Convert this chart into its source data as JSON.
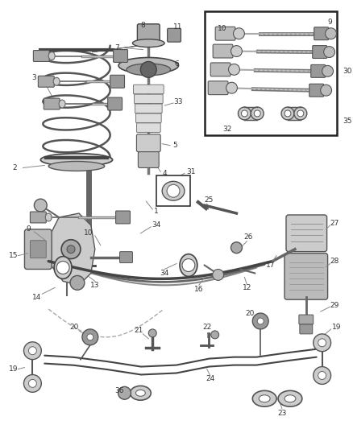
{
  "bg_color": "#ffffff",
  "fig_width": 4.39,
  "fig_height": 5.33,
  "dpi": 100,
  "line_color": "#444444",
  "label_color": "#333333",
  "font_size": 6.5
}
